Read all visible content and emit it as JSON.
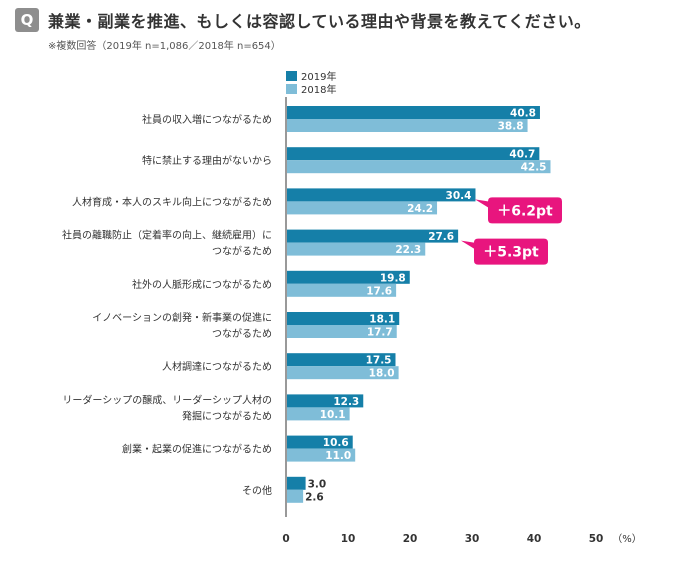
{
  "header": {
    "badge": "Q",
    "title": "兼業・副業を推進、もしくは容認している理由や背景を教えてください。",
    "note": "※複数回答（2019年 n=1,086／2018年 n=654）"
  },
  "colors": {
    "series_2019": "#157fa8",
    "series_2018": "#7fbdd8",
    "callout": "#e8157e",
    "axis": "#333333"
  },
  "callouts": [
    {
      "category_index": 2,
      "text": "＋6.2pt"
    },
    {
      "category_index": 3,
      "text": "＋5.3pt"
    }
  ],
  "chart_data": {
    "type": "bar",
    "orientation": "horizontal",
    "categories": [
      [
        "社員の収入増につながるため"
      ],
      [
        "特に禁止する理由がないから"
      ],
      [
        "人材育成・本人のスキル向上につながるため"
      ],
      [
        "社員の離職防止（定着率の向上、継続雇用）に",
        "つながるため"
      ],
      [
        "社外の人脈形成につながるため"
      ],
      [
        "イノベーションの創発・新事業の促進に",
        "つながるため"
      ],
      [
        "人材調達につながるため"
      ],
      [
        "リーダーシップの醸成、リーダーシップ人材の",
        "発掘につながるため"
      ],
      [
        "創業・起業の促進につながるため"
      ],
      [
        "その他"
      ]
    ],
    "series": [
      {
        "name": "2019年",
        "values": [
          40.8,
          40.7,
          30.4,
          27.6,
          19.8,
          18.1,
          17.5,
          12.3,
          10.6,
          3.0
        ],
        "labels": [
          "40.8",
          "40.7",
          "30.4",
          "27.6",
          "19.8",
          "18.1",
          "17.5",
          "12.3",
          "10.6",
          "3.0"
        ]
      },
      {
        "name": "2018年",
        "values": [
          38.8,
          42.5,
          24.2,
          22.3,
          17.6,
          17.7,
          18.0,
          10.1,
          11.0,
          2.6
        ],
        "labels": [
          "38.8",
          "42.5",
          "24.2",
          "22.3",
          "17.6",
          "17.7",
          "18.0",
          "10.1",
          "11.0",
          "2.6"
        ]
      }
    ],
    "xlim": [
      0,
      50
    ],
    "xticks": [
      "0",
      "10",
      "20",
      "30",
      "40",
      "50"
    ],
    "unit": "（%）",
    "legend_position": "top-left"
  }
}
